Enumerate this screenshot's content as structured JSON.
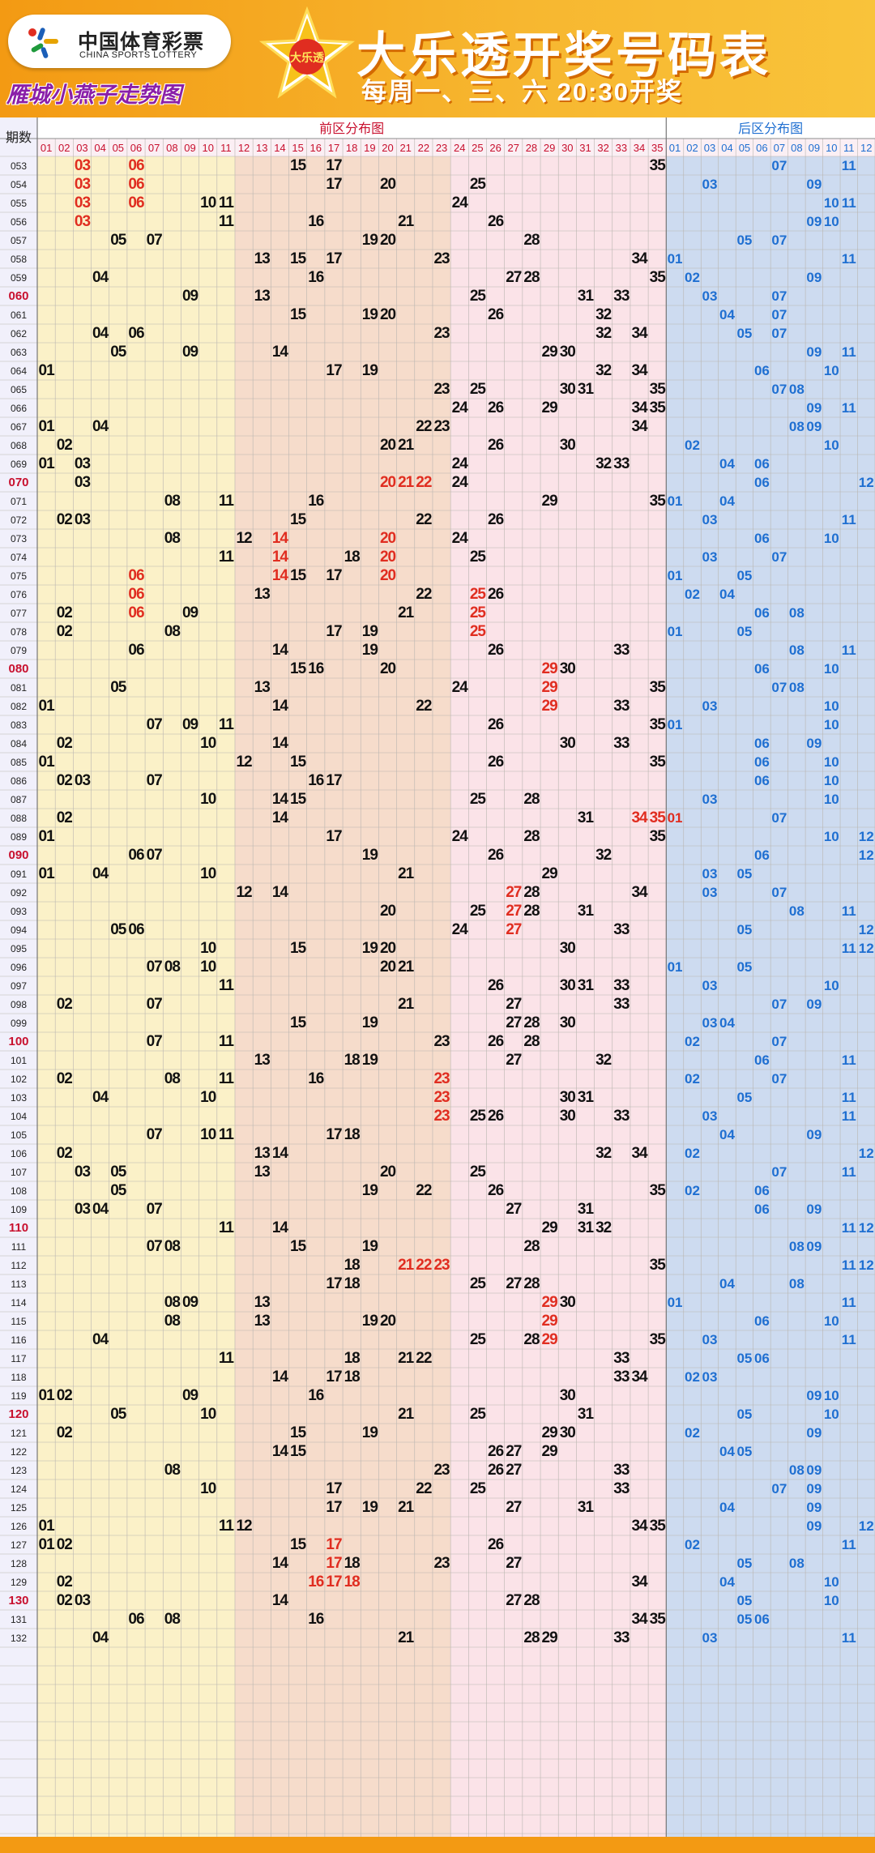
{
  "header": {
    "logo_cn": "中国体育彩票",
    "logo_en": "CHINA SPORTS LOTTERY",
    "subtitle_left": "雁城小燕子走势图",
    "star_badge": "大乐透",
    "title": "大乐透开奖号码表",
    "draw_time": "每周一、三、六 20:30开奖"
  },
  "table": {
    "period_header": "期数",
    "front_zone_label": "前区分布图",
    "back_zone_label": "后区分布图",
    "front_numbers": [
      "01",
      "02",
      "03",
      "04",
      "05",
      "06",
      "07",
      "08",
      "09",
      "10",
      "11",
      "12",
      "13",
      "14",
      "15",
      "16",
      "17",
      "18",
      "19",
      "20",
      "21",
      "22",
      "23",
      "24",
      "25",
      "26",
      "27",
      "28",
      "29",
      "30",
      "31",
      "32",
      "33",
      "34",
      "35"
    ],
    "back_numbers": [
      "01",
      "02",
      "03",
      "04",
      "05",
      "06",
      "07",
      "08",
      "09",
      "10",
      "11",
      "12"
    ],
    "colors": {
      "normal": "#111111",
      "highlight": "#e02d20",
      "back": "#1f6fd1",
      "period_hl": "#c8102e",
      "zone1": "#fbf1c8",
      "zone2": "#f6dccb",
      "zone3": "#fbe3e8",
      "back_zone": "#cddbf0"
    },
    "rows": [
      {
        "p": "053",
        "f": [
          3,
          6,
          15,
          17,
          35
        ],
        "b": [
          7,
          11
        ],
        "hf": [
          3,
          6
        ]
      },
      {
        "p": "054",
        "f": [
          3,
          6,
          17,
          20,
          25
        ],
        "b": [
          3,
          9
        ],
        "hf": [
          3,
          6
        ]
      },
      {
        "p": "055",
        "f": [
          3,
          6,
          10,
          11,
          24
        ],
        "b": [
          10,
          11
        ],
        "hf": [
          3,
          6
        ]
      },
      {
        "p": "056",
        "f": [
          3,
          11,
          16,
          21,
          26
        ],
        "b": [
          9,
          10
        ],
        "hf": [
          3
        ]
      },
      {
        "p": "057",
        "f": [
          5,
          7,
          19,
          20,
          28
        ],
        "b": [
          5,
          7
        ]
      },
      {
        "p": "058",
        "f": [
          13,
          15,
          17,
          23,
          34
        ],
        "b": [
          1,
          11
        ]
      },
      {
        "p": "059",
        "f": [
          4,
          16,
          27,
          28,
          35
        ],
        "b": [
          2,
          9
        ]
      },
      {
        "p": "060",
        "f": [
          9,
          13,
          25,
          31,
          33
        ],
        "b": [
          3,
          7
        ],
        "hp": true
      },
      {
        "p": "061",
        "f": [
          15,
          19,
          20,
          26,
          32
        ],
        "b": [
          4,
          7
        ]
      },
      {
        "p": "062",
        "f": [
          4,
          6,
          23,
          32,
          34
        ],
        "b": [
          5,
          7
        ]
      },
      {
        "p": "063",
        "f": [
          5,
          9,
          14,
          29,
          30
        ],
        "b": [
          9,
          11
        ]
      },
      {
        "p": "064",
        "f": [
          1,
          17,
          19,
          32,
          34
        ],
        "b": [
          6,
          10
        ]
      },
      {
        "p": "065",
        "f": [
          23,
          25,
          30,
          31,
          35
        ],
        "b": [
          7,
          8
        ]
      },
      {
        "p": "066",
        "f": [
          24,
          26,
          29,
          34,
          35
        ],
        "b": [
          9,
          11
        ]
      },
      {
        "p": "067",
        "f": [
          1,
          4,
          22,
          23,
          34
        ],
        "b": [
          8,
          9
        ]
      },
      {
        "p": "068",
        "f": [
          2,
          20,
          21,
          26,
          30
        ],
        "b": [
          2,
          10
        ]
      },
      {
        "p": "069",
        "f": [
          1,
          3,
          24,
          32,
          33
        ],
        "b": [
          4,
          6
        ]
      },
      {
        "p": "070",
        "f": [
          3,
          20,
          21,
          22,
          24
        ],
        "b": [
          6,
          12
        ],
        "hp": true,
        "hf": [
          20,
          21,
          22
        ]
      },
      {
        "p": "071",
        "f": [
          8,
          11,
          16,
          29,
          35
        ],
        "b": [
          1,
          4
        ]
      },
      {
        "p": "072",
        "f": [
          2,
          3,
          15,
          22,
          26
        ],
        "b": [
          3,
          11
        ]
      },
      {
        "p": "073",
        "f": [
          8,
          12,
          14,
          20,
          24
        ],
        "b": [
          6,
          10
        ],
        "hf": [
          14,
          20
        ]
      },
      {
        "p": "074",
        "f": [
          11,
          14,
          18,
          20,
          25
        ],
        "b": [
          3,
          7
        ],
        "hf": [
          14,
          20
        ]
      },
      {
        "p": "075",
        "f": [
          6,
          14,
          15,
          17,
          20
        ],
        "b": [
          1,
          5
        ],
        "hf": [
          6,
          14,
          20
        ]
      },
      {
        "p": "076",
        "f": [
          6,
          13,
          22,
          25,
          26
        ],
        "b": [
          2,
          4
        ],
        "hf": [
          6,
          25
        ]
      },
      {
        "p": "077",
        "f": [
          2,
          6,
          9,
          21,
          25
        ],
        "b": [
          6,
          8
        ],
        "hf": [
          6,
          25
        ]
      },
      {
        "p": "078",
        "f": [
          2,
          8,
          17,
          19,
          25
        ],
        "b": [
          1,
          5
        ],
        "hf": [
          25
        ]
      },
      {
        "p": "079",
        "f": [
          6,
          14,
          19,
          26,
          33
        ],
        "b": [
          8,
          11
        ]
      },
      {
        "p": "080",
        "f": [
          15,
          16,
          20,
          29,
          30
        ],
        "b": [
          6,
          10
        ],
        "hp": true,
        "hf": [
          29
        ]
      },
      {
        "p": "081",
        "f": [
          5,
          13,
          24,
          29,
          35
        ],
        "b": [
          7,
          8
        ],
        "hf": [
          29
        ]
      },
      {
        "p": "082",
        "f": [
          1,
          14,
          22,
          29,
          33
        ],
        "b": [
          3,
          10
        ],
        "hf": [
          29
        ]
      },
      {
        "p": "083",
        "f": [
          7,
          9,
          11,
          26,
          35
        ],
        "b": [
          1,
          10
        ]
      },
      {
        "p": "084",
        "f": [
          2,
          10,
          14,
          30,
          33
        ],
        "b": [
          6,
          9
        ]
      },
      {
        "p": "085",
        "f": [
          1,
          12,
          15,
          26,
          35
        ],
        "b": [
          6,
          10
        ]
      },
      {
        "p": "086",
        "f": [
          2,
          3,
          7,
          16,
          17
        ],
        "b": [
          6,
          10
        ]
      },
      {
        "p": "087",
        "f": [
          10,
          14,
          15,
          25,
          28
        ],
        "b": [
          3,
          10
        ]
      },
      {
        "p": "088",
        "f": [
          2,
          14,
          31,
          34,
          35
        ],
        "b": [
          1,
          7
        ],
        "hf": [
          34,
          35
        ],
        "hb": [
          1
        ]
      },
      {
        "p": "089",
        "f": [
          1,
          17,
          24,
          28,
          35
        ],
        "b": [
          10,
          12
        ]
      },
      {
        "p": "090",
        "f": [
          6,
          7,
          19,
          26,
          32
        ],
        "b": [
          6,
          12
        ],
        "hp": true
      },
      {
        "p": "091",
        "f": [
          1,
          4,
          10,
          21,
          29
        ],
        "b": [
          3,
          5
        ]
      },
      {
        "p": "092",
        "f": [
          12,
          14,
          27,
          28,
          34
        ],
        "b": [
          3,
          7
        ],
        "hf": [
          27
        ]
      },
      {
        "p": "093",
        "f": [
          20,
          25,
          27,
          28,
          31
        ],
        "b": [
          8,
          11
        ],
        "hf": [
          27
        ]
      },
      {
        "p": "094",
        "f": [
          5,
          6,
          24,
          27,
          33
        ],
        "b": [
          5,
          12
        ],
        "hf": [
          27
        ]
      },
      {
        "p": "095",
        "f": [
          10,
          15,
          19,
          20,
          30
        ],
        "b": [
          11,
          12
        ]
      },
      {
        "p": "096",
        "f": [
          7,
          8,
          10,
          20,
          21
        ],
        "b": [
          1,
          5
        ]
      },
      {
        "p": "097",
        "f": [
          11,
          26,
          30,
          31,
          33
        ],
        "b": [
          3,
          10
        ]
      },
      {
        "p": "098",
        "f": [
          2,
          7,
          21,
          27,
          33
        ],
        "b": [
          7,
          9
        ]
      },
      {
        "p": "099",
        "f": [
          15,
          19,
          27,
          28,
          30
        ],
        "b": [
          3,
          4
        ]
      },
      {
        "p": "100",
        "f": [
          7,
          11,
          23,
          26,
          28
        ],
        "b": [
          2,
          7
        ],
        "hp": true
      },
      {
        "p": "101",
        "f": [
          13,
          18,
          19,
          27,
          32
        ],
        "b": [
          6,
          11
        ]
      },
      {
        "p": "102",
        "f": [
          2,
          8,
          11,
          16,
          23
        ],
        "b": [
          2,
          7
        ],
        "hf": [
          23
        ]
      },
      {
        "p": "103",
        "f": [
          4,
          10,
          23,
          30,
          31
        ],
        "b": [
          5,
          11
        ],
        "hf": [
          23
        ]
      },
      {
        "p": "104",
        "f": [
          23,
          25,
          26,
          30,
          33
        ],
        "b": [
          3,
          11
        ],
        "hf": [
          23
        ]
      },
      {
        "p": "105",
        "f": [
          7,
          10,
          11,
          17,
          18
        ],
        "b": [
          4,
          9
        ]
      },
      {
        "p": "106",
        "f": [
          2,
          13,
          14,
          32,
          34
        ],
        "b": [
          2,
          12
        ]
      },
      {
        "p": "107",
        "f": [
          3,
          5,
          13,
          20,
          25
        ],
        "b": [
          7,
          11
        ]
      },
      {
        "p": "108",
        "f": [
          5,
          19,
          22,
          26,
          35
        ],
        "b": [
          2,
          6
        ]
      },
      {
        "p": "109",
        "f": [
          3,
          4,
          7,
          27,
          31
        ],
        "b": [
          6,
          9
        ]
      },
      {
        "p": "110",
        "f": [
          11,
          14,
          29,
          31,
          32
        ],
        "b": [
          11,
          12
        ],
        "hp": true
      },
      {
        "p": "111",
        "f": [
          7,
          8,
          15,
          19,
          28
        ],
        "b": [
          8,
          9
        ]
      },
      {
        "p": "112",
        "f": [
          18,
          21,
          22,
          23,
          35
        ],
        "b": [
          11,
          12
        ],
        "hf": [
          21,
          22,
          23
        ]
      },
      {
        "p": "113",
        "f": [
          17,
          18,
          25,
          27,
          28
        ],
        "b": [
          4,
          8
        ]
      },
      {
        "p": "114",
        "f": [
          8,
          9,
          13,
          29,
          30
        ],
        "b": [
          1,
          11
        ],
        "hf": [
          29
        ]
      },
      {
        "p": "115",
        "f": [
          8,
          13,
          19,
          20,
          29
        ],
        "b": [
          6,
          10
        ],
        "hf": [
          29
        ]
      },
      {
        "p": "116",
        "f": [
          4,
          25,
          28,
          29,
          35
        ],
        "b": [
          3,
          11
        ],
        "hf": [
          29
        ]
      },
      {
        "p": "117",
        "f": [
          11,
          18,
          21,
          22,
          33
        ],
        "b": [
          5,
          6
        ]
      },
      {
        "p": "118",
        "f": [
          14,
          17,
          18,
          33,
          34
        ],
        "b": [
          2,
          3
        ]
      },
      {
        "p": "119",
        "f": [
          1,
          2,
          9,
          16,
          30
        ],
        "b": [
          9,
          10
        ]
      },
      {
        "p": "120",
        "f": [
          5,
          10,
          21,
          25,
          31
        ],
        "b": [
          5,
          10
        ],
        "hp": true
      },
      {
        "p": "121",
        "f": [
          2,
          15,
          19,
          29,
          30
        ],
        "b": [
          2,
          9
        ]
      },
      {
        "p": "122",
        "f": [
          14,
          15,
          26,
          27,
          29
        ],
        "b": [
          4,
          5
        ]
      },
      {
        "p": "123",
        "f": [
          8,
          23,
          26,
          27,
          33
        ],
        "b": [
          8,
          9
        ]
      },
      {
        "p": "124",
        "f": [
          10,
          17,
          22,
          25,
          33
        ],
        "b": [
          7,
          9
        ]
      },
      {
        "p": "125",
        "f": [
          17,
          19,
          21,
          27,
          31
        ],
        "b": [
          4,
          9
        ]
      },
      {
        "p": "126",
        "f": [
          1,
          11,
          12,
          34,
          35
        ],
        "b": [
          9,
          12
        ]
      },
      {
        "p": "127",
        "f": [
          1,
          2,
          15,
          17,
          26
        ],
        "b": [
          2,
          11
        ],
        "hf": [
          17
        ]
      },
      {
        "p": "128",
        "f": [
          14,
          17,
          18,
          23,
          27
        ],
        "b": [
          5,
          8
        ],
        "hf": [
          17
        ]
      },
      {
        "p": "129",
        "f": [
          2,
          16,
          17,
          18,
          34
        ],
        "b": [
          4,
          10
        ],
        "hf": [
          16,
          17,
          18
        ]
      },
      {
        "p": "130",
        "f": [
          2,
          3,
          14,
          27,
          28
        ],
        "b": [
          5,
          10
        ],
        "hp": true
      },
      {
        "p": "131",
        "f": [
          6,
          8,
          16,
          34,
          35
        ],
        "b": [
          5,
          6
        ]
      },
      {
        "p": "132",
        "f": [
          4,
          21,
          28,
          29,
          33
        ],
        "b": [
          3,
          11
        ]
      }
    ]
  }
}
